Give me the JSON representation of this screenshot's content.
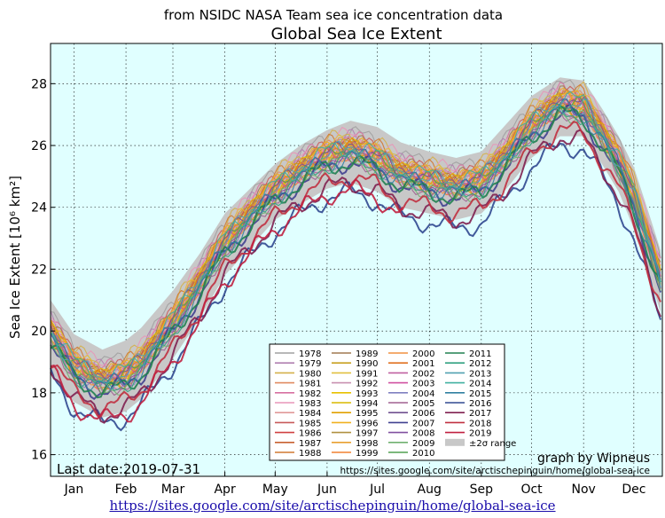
{
  "chart_data": {
    "type": "line",
    "suptitle": "from NSIDC NASA Team sea ice concentration data",
    "title": "Global Sea Ice Extent",
    "ylabel": "Sea Ice Extent [10⁶ km²]",
    "xlabel": "",
    "ylim": [
      15.3,
      29.3
    ],
    "yticks": [
      16,
      18,
      20,
      22,
      24,
      26,
      28
    ],
    "xticks": [
      "Jan",
      "Feb",
      "Mar",
      "Apr",
      "May",
      "Jun",
      "Jul",
      "Aug",
      "Sep",
      "Oct",
      "Nov",
      "Dec"
    ],
    "xtick_days": [
      15,
      46,
      74,
      105,
      135,
      166,
      196,
      227,
      258,
      288,
      319,
      349
    ],
    "grid": true,
    "background": "#e0ffff",
    "legend_position": "lower-center",
    "range_band": {
      "name": "±2σ range",
      "color": "#c8c8c8",
      "x": [
        1,
        15,
        32,
        46,
        55,
        74,
        90,
        105,
        120,
        135,
        150,
        166,
        180,
        196,
        210,
        227,
        243,
        258,
        273,
        288,
        305,
        319,
        330,
        340,
        349,
        358,
        365
      ],
      "lower": [
        18.7,
        17.7,
        17.2,
        17.4,
        17.8,
        19.1,
        20.4,
        21.8,
        22.7,
        23.6,
        24.1,
        24.6,
        24.8,
        24.5,
        24.0,
        23.8,
        23.6,
        23.8,
        24.6,
        25.6,
        26.3,
        26.3,
        25.4,
        24.5,
        23.3,
        21.8,
        20.6
      ],
      "upper": [
        21.0,
        19.9,
        19.4,
        19.7,
        20.1,
        21.3,
        22.5,
        23.8,
        24.6,
        25.4,
        26.0,
        26.5,
        26.8,
        26.6,
        26.1,
        25.8,
        25.6,
        25.8,
        26.7,
        27.6,
        28.2,
        28.1,
        27.2,
        26.3,
        25.3,
        23.8,
        22.6
      ]
    },
    "base_curve": {
      "x": [
        1,
        15,
        32,
        46,
        55,
        74,
        90,
        105,
        120,
        135,
        150,
        166,
        180,
        196,
        210,
        227,
        243,
        258,
        273,
        288,
        305,
        319,
        330,
        340,
        349,
        358,
        365
      ],
      "y": [
        19.9,
        18.8,
        18.3,
        18.5,
        18.9,
        20.2,
        21.5,
        22.8,
        23.7,
        24.5,
        25.1,
        25.6,
        25.8,
        25.5,
        25.0,
        24.8,
        24.6,
        24.8,
        25.6,
        26.6,
        27.3,
        27.2,
        26.3,
        25.4,
        24.3,
        22.8,
        21.6
      ]
    },
    "series": [
      {
        "name": "1978",
        "color": "#a0a0a0",
        "offset": 0.6,
        "end_day": 365
      },
      {
        "name": "1979",
        "color": "#b07fb0",
        "offset": 0.4,
        "end_day": 365
      },
      {
        "name": "1980",
        "color": "#d4b04a",
        "offset": 0.5,
        "end_day": 365
      },
      {
        "name": "1981",
        "color": "#e08a60",
        "offset": 0.3,
        "end_day": 365
      },
      {
        "name": "1982",
        "color": "#d770a0",
        "offset": 0.4,
        "end_day": 365
      },
      {
        "name": "1983",
        "color": "#e896b8",
        "offset": 0.5,
        "end_day": 365
      },
      {
        "name": "1984",
        "color": "#e09898",
        "offset": 0.2,
        "end_day": 365
      },
      {
        "name": "1985",
        "color": "#c85a5a",
        "offset": 0.3,
        "end_day": 365
      },
      {
        "name": "1986",
        "color": "#d04040",
        "offset": 0.1,
        "end_day": 365
      },
      {
        "name": "1987",
        "color": "#c86030",
        "offset": 0.2,
        "end_day": 365
      },
      {
        "name": "1988",
        "color": "#d07830",
        "offset": 0.4,
        "end_day": 365
      },
      {
        "name": "1989",
        "color": "#a07850",
        "offset": 0.3,
        "end_day": 365
      },
      {
        "name": "1990",
        "color": "#c8a020",
        "offset": 0.2,
        "end_day": 365
      },
      {
        "name": "1991",
        "color": "#e0c040",
        "offset": 0.3,
        "end_day": 365
      },
      {
        "name": "1992",
        "color": "#c890b0",
        "offset": 0.1,
        "end_day": 365
      },
      {
        "name": "1993",
        "color": "#e8c000",
        "offset": 0.2,
        "end_day": 365
      },
      {
        "name": "1994",
        "color": "#d8b800",
        "offset": 0.0,
        "end_day": 365
      },
      {
        "name": "1995",
        "color": "#e0a000",
        "offset": 0.1,
        "end_day": 365
      },
      {
        "name": "1996",
        "color": "#f0b020",
        "offset": 0.3,
        "end_day": 365
      },
      {
        "name": "1997",
        "color": "#b09040",
        "offset": 0.0,
        "end_day": 365
      },
      {
        "name": "1998",
        "color": "#e8a030",
        "offset": 0.2,
        "end_day": 365
      },
      {
        "name": "1999",
        "color": "#f08030",
        "offset": 0.0,
        "end_day": 365
      },
      {
        "name": "2000",
        "color": "#f09040",
        "offset": 0.1,
        "end_day": 365
      },
      {
        "name": "2001",
        "color": "#e07020",
        "offset": 0.0,
        "end_day": 365
      },
      {
        "name": "2002",
        "color": "#c060a0",
        "offset": -0.1,
        "end_day": 365
      },
      {
        "name": "2003",
        "color": "#d050a0",
        "offset": 0.0,
        "end_day": 365
      },
      {
        "name": "2004",
        "color": "#8080c0",
        "offset": -0.1,
        "end_day": 365
      },
      {
        "name": "2005",
        "color": "#a06090",
        "offset": -0.2,
        "end_day": 365
      },
      {
        "name": "2006",
        "color": "#705090",
        "offset": 0.1,
        "end_day": 365
      },
      {
        "name": "2007",
        "color": "#404090",
        "offset": -0.3,
        "end_day": 365
      },
      {
        "name": "2008",
        "color": "#8050a0",
        "offset": 0.0,
        "end_day": 365
      },
      {
        "name": "2009",
        "color": "#70b070",
        "offset": -0.2,
        "end_day": 365
      },
      {
        "name": "2010",
        "color": "#50a050",
        "offset": 0.0,
        "end_day": 365
      },
      {
        "name": "2011",
        "color": "#208050",
        "offset": -0.3,
        "end_day": 365
      },
      {
        "name": "2012",
        "color": "#30a080",
        "offset": -0.2,
        "end_day": 365
      },
      {
        "name": "2013",
        "color": "#50a0b0",
        "offset": 0.1,
        "end_day": 365
      },
      {
        "name": "2014",
        "color": "#40b0a0",
        "offset": 0.2,
        "end_day": 365
      },
      {
        "name": "2015",
        "color": "#3080a0",
        "offset": -0.1,
        "end_day": 365
      },
      {
        "name": "2016",
        "color": "#304890",
        "offset": -1.3,
        "end_day": 365
      },
      {
        "name": "2017",
        "color": "#802050",
        "offset": -1.0,
        "end_day": 365
      },
      {
        "name": "2018",
        "color": "#c03040",
        "offset": -0.8,
        "end_day": 365
      },
      {
        "name": "2019",
        "color": "#c02040",
        "offset": -1.2,
        "end_day": 212
      }
    ],
    "annotations": {
      "last_date": "Last date:2019-07-31",
      "credit": "graph by Wipneus",
      "credit_url": "https://sites.google.com/site/arctischepinguin/home/global-sea-ice"
    }
  },
  "footer": {
    "link_text": "https://sites.google.com/site/arctischepinguin/home/global-sea-ice"
  }
}
